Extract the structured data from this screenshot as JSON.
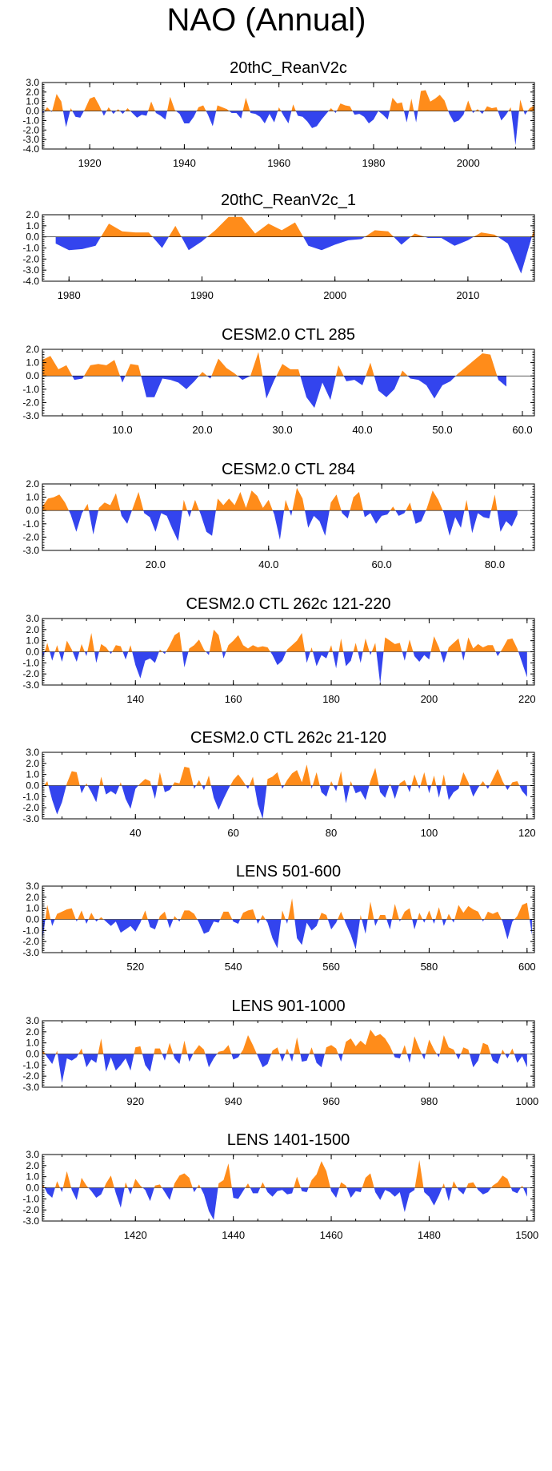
{
  "figure_title": "NAO (Annual)",
  "colors": {
    "positive": "#ff8c1a",
    "negative": "#3344ee",
    "axis": "#000000"
  },
  "chart_data": [
    {
      "type": "area",
      "title": "20thC_ReanV2c",
      "xlim": [
        1910,
        2014
      ],
      "ylim": [
        -4,
        3
      ],
      "yticks": [
        3.0,
        2.0,
        1.0,
        0.0,
        -1.0,
        -2.0,
        -3.0,
        -4.0
      ],
      "xticks": [
        1920,
        1940,
        1960,
        1980,
        2000
      ],
      "xtick_labels": [
        "1920",
        "1940",
        "1960",
        "1980",
        "2000"
      ],
      "x_start": 1910,
      "x_step": 1,
      "values": [
        -0.3,
        0.4,
        -0.1,
        1.8,
        1.0,
        -1.7,
        0.3,
        -0.6,
        -0.7,
        0.2,
        1.3,
        1.5,
        0.6,
        -0.5,
        0.4,
        -0.3,
        0.2,
        -0.3,
        0.3,
        -0.2,
        -0.7,
        -0.4,
        -0.5,
        1.0,
        -0.2,
        -0.5,
        -0.9,
        1.5,
        0.1,
        -0.3,
        -1.3,
        -1.3,
        -0.6,
        0.4,
        0.6,
        -0.4,
        -1.6,
        0.6,
        0.4,
        0.2,
        -0.2,
        -0.2,
        -0.8,
        1.4,
        -0.2,
        -0.3,
        -0.6,
        -1.3,
        -0.3,
        -1.2,
        0.4,
        -0.5,
        -1.3,
        0.7,
        -0.5,
        -0.6,
        -1.1,
        -1.8,
        -1.6,
        -0.9,
        -0.3,
        0.3,
        -0.2,
        0.8,
        0.6,
        0.5,
        -0.4,
        -0.3,
        -0.6,
        -1.3,
        -0.9,
        0.0,
        -0.4,
        -0.9,
        1.4,
        0.8,
        0.9,
        -1.2,
        1.3,
        -1.2,
        2.1,
        2.2,
        1.0,
        1.3,
        1.7,
        1.1,
        -0.3,
        -1.2,
        -1.0,
        -0.4,
        1.1,
        -0.2,
        0.2,
        -0.3,
        0.5,
        0.3,
        0.4,
        -1.0,
        -0.4,
        0.4,
        -3.6,
        1.2,
        -0.4,
        0.3,
        0.6
      ]
    },
    {
      "type": "area",
      "title": "20thC_ReanV2c_1",
      "xlim": [
        1978,
        2015
      ],
      "ylim": [
        -4,
        2
      ],
      "yticks": [
        2.0,
        1.0,
        0.0,
        -1.0,
        -2.0,
        -3.0,
        -4.0
      ],
      "xticks": [
        1980,
        1990,
        2000,
        2010
      ],
      "xtick_labels": [
        "1980",
        "1990",
        "2000",
        "2010"
      ],
      "x_start": 1979,
      "x_step": 1,
      "values": [
        -0.6,
        -1.2,
        -1.1,
        -0.8,
        1.2,
        0.5,
        0.4,
        0.4,
        -1.0,
        1.0,
        -1.2,
        -0.4,
        0.6,
        1.8,
        1.8,
        0.3,
        1.2,
        0.6,
        1.3,
        -0.8,
        -1.2,
        -0.7,
        -0.3,
        -0.2,
        0.6,
        0.5,
        -0.7,
        0.3,
        -0.1,
        -0.1,
        -0.8,
        -0.3,
        0.4,
        0.2,
        -0.6,
        -3.3,
        0.8,
        -0.7,
        -0.3,
        0.5
      ]
    },
    {
      "type": "area",
      "title": "CESM2.0 CTL 285",
      "xlim": [
        0,
        61.5
      ],
      "ylim": [
        -3,
        2
      ],
      "yticks": [
        2.0,
        1.0,
        0.0,
        -1.0,
        -2.0,
        -3.0
      ],
      "xticks": [
        10,
        20,
        30,
        40,
        50,
        60
      ],
      "xtick_labels": [
        "10.0",
        "20.0",
        "30.0",
        "40.0",
        "50.0",
        "60.0"
      ],
      "x_start": 0,
      "x_step": 1,
      "values": [
        1.2,
        1.5,
        0.5,
        0.8,
        -0.3,
        -0.2,
        0.8,
        0.9,
        0.8,
        1.2,
        -0.5,
        0.9,
        0.8,
        -1.6,
        -1.6,
        -0.2,
        -0.3,
        -0.5,
        -1.0,
        -0.4,
        0.3,
        -0.2,
        1.3,
        0.6,
        0.2,
        -0.3,
        0.0,
        1.8,
        -1.7,
        -0.3,
        0.9,
        0.5,
        0.5,
        -1.6,
        -2.4,
        -0.5,
        -1.8,
        0.8,
        -0.4,
        -0.3,
        -0.7,
        1.0,
        -1.1,
        -1.6,
        -1.0,
        0.4,
        -0.2,
        -0.3,
        -0.7,
        -1.7,
        -0.7,
        -0.4,
        0.2,
        0.7,
        1.2,
        1.7,
        1.6,
        -0.3,
        -0.8
      ]
    },
    {
      "type": "area",
      "title": "CESM2.0 CTL 284",
      "xlim": [
        0,
        87
      ],
      "ylim": [
        -3,
        2
      ],
      "yticks": [
        2.0,
        1.0,
        0.0,
        -1.0,
        -2.0,
        -3.0
      ],
      "xticks": [
        20,
        40,
        60,
        80
      ],
      "xtick_labels": [
        "20.0",
        "40.0",
        "60.0",
        "80.0"
      ],
      "x_start": 0,
      "x_step": 1,
      "values": [
        0.3,
        0.9,
        1.0,
        1.2,
        0.6,
        -0.3,
        -1.6,
        -0.2,
        0.5,
        -1.8,
        0.2,
        0.6,
        0.4,
        1.3,
        -0.4,
        -1.0,
        0.2,
        1.4,
        -0.2,
        -0.5,
        -1.6,
        -0.2,
        -0.4,
        -1.4,
        -2.3,
        0.8,
        -0.5,
        0.8,
        -0.3,
        -1.6,
        -1.9,
        0.9,
        0.4,
        0.9,
        0.4,
        1.4,
        0.2,
        1.5,
        1.1,
        0.2,
        0.8,
        -0.3,
        -2.2,
        0.8,
        -0.4,
        1.7,
        0.9,
        -1.3,
        -0.4,
        -0.8,
        -1.9,
        0.6,
        1.2,
        -0.2,
        -0.6,
        1.0,
        1.4,
        -0.5,
        -0.2,
        -1.0,
        -0.4,
        -0.3,
        0.3,
        -0.4,
        -0.2,
        0.6,
        -1.0,
        -0.8,
        0.2,
        1.5,
        0.8,
        -0.2,
        -1.9,
        -0.5,
        -1.3,
        0.8,
        -1.7,
        -0.2,
        -0.5,
        -0.6,
        1.2,
        -1.6,
        -0.8,
        -1.2,
        -0.3
      ]
    },
    {
      "type": "area",
      "title": "CESM2.0 CTL 262c 121-220",
      "xlim": [
        121,
        221.5
      ],
      "ylim": [
        -3,
        3
      ],
      "yticks": [
        3.0,
        2.0,
        1.0,
        0.0,
        -1.0,
        -2.0,
        -3.0
      ],
      "xticks": [
        140,
        160,
        180,
        200,
        220
      ],
      "xtick_labels": [
        "140",
        "160",
        "180",
        "200",
        "220"
      ],
      "x_start": 121,
      "x_step": 1,
      "values": [
        -0.7,
        0.8,
        -0.8,
        0.6,
        -0.9,
        1.0,
        0.2,
        -0.9,
        0.7,
        -0.4,
        1.7,
        -1.0,
        0.7,
        0.4,
        -0.2,
        0.6,
        0.5,
        -0.7,
        0.6,
        -1.2,
        -2.4,
        -0.8,
        -0.6,
        -1.0,
        0.2,
        -0.2,
        0.6,
        1.5,
        1.8,
        -1.4,
        0.3,
        0.6,
        1.1,
        0.2,
        -0.3,
        2.0,
        1.5,
        -0.6,
        0.6,
        1.0,
        1.5,
        0.6,
        0.3,
        0.6,
        0.4,
        0.5,
        0.4,
        -0.3,
        -1.2,
        -0.8,
        0.2,
        0.6,
        1.0,
        1.7,
        -1.0,
        0.4,
        -1.3,
        -0.3,
        -0.6,
        0.6,
        -1.5,
        1.2,
        -1.3,
        -0.8,
        0.8,
        -1.0,
        1.2,
        -0.3,
        0.8,
        -2.9,
        1.3,
        1.0,
        0.7,
        0.8,
        -0.8,
        1.1,
        -0.4,
        -0.9,
        -0.3,
        -0.7,
        1.4,
        0.4,
        -1.0,
        0.4,
        0.8,
        1.2,
        -0.8,
        1.3,
        0.3,
        0.7,
        0.4,
        0.6,
        0.6,
        -0.4,
        0.3,
        1.1,
        1.2,
        0.3,
        -1.0,
        -2.3
      ]
    },
    {
      "type": "area",
      "title": "CESM2.0 CTL 262c 21-120",
      "xlim": [
        21,
        121.5
      ],
      "ylim": [
        -3,
        3
      ],
      "yticks": [
        3.0,
        2.0,
        1.0,
        0.0,
        -1.0,
        -2.0,
        -3.0
      ],
      "xticks": [
        40,
        60,
        80,
        100,
        120
      ],
      "xtick_labels": [
        "40",
        "60",
        "80",
        "100",
        "120"
      ],
      "x_start": 21,
      "x_step": 1,
      "values": [
        -0.2,
        0.4,
        -1.3,
        -2.6,
        -1.5,
        0.2,
        1.3,
        1.2,
        -0.7,
        0.2,
        -0.6,
        -1.5,
        0.8,
        -0.8,
        -0.5,
        -0.8,
        0.3,
        -1.2,
        -2.1,
        -0.3,
        0.2,
        0.6,
        0.4,
        -1.2,
        1.2,
        -0.6,
        -0.4,
        0.3,
        0.2,
        1.7,
        1.6,
        -0.3,
        0.5,
        -0.4,
        0.9,
        -1.1,
        -2.2,
        -1.2,
        -0.3,
        0.5,
        1.0,
        0.4,
        -0.3,
        0.8,
        -1.7,
        -3.0,
        0.6,
        0.8,
        1.2,
        -0.3,
        0.5,
        1.1,
        1.4,
        0.3,
        1.9,
        -0.3,
        1.2,
        -0.6,
        -1.0,
        0.4,
        -0.5,
        1.3,
        -1.6,
        0.4,
        -0.7,
        -0.5,
        -1.3,
        0.4,
        1.6,
        -0.6,
        -1.1,
        0.2,
        -1.2,
        0.2,
        0.5,
        -0.6,
        1.0,
        -0.3,
        1.2,
        -0.7,
        0.9,
        -1.1,
        1.0,
        -1.3,
        -0.6,
        -0.3,
        1.2,
        0.3,
        -1.0,
        -0.2,
        0.4,
        -0.3,
        0.6,
        1.5,
        0.4,
        -0.4,
        0.3,
        0.4,
        -0.5,
        -1.0
      ]
    },
    {
      "type": "area",
      "title": "LENS 501-600",
      "xlim": [
        501,
        601.5
      ],
      "ylim": [
        -3,
        3
      ],
      "yticks": [
        3.0,
        2.0,
        1.0,
        0.0,
        -1.0,
        -2.0,
        -3.0
      ],
      "xticks": [
        520,
        540,
        560,
        580,
        600
      ],
      "xtick_labels": [
        "520",
        "540",
        "560",
        "580",
        "600"
      ],
      "x_start": 501,
      "x_step": 1,
      "values": [
        -1.9,
        1.3,
        -0.6,
        0.5,
        0.7,
        0.9,
        1.0,
        -0.2,
        0.8,
        -0.4,
        0.6,
        -0.2,
        0.2,
        -0.2,
        -0.6,
        -0.2,
        -1.2,
        -0.9,
        -0.6,
        -1.1,
        -0.3,
        0.8,
        -0.7,
        -0.9,
        0.3,
        0.7,
        -0.8,
        0.3,
        -0.2,
        0.8,
        0.8,
        0.5,
        -0.3,
        -1.3,
        -1.1,
        -0.2,
        -0.3,
        0.7,
        0.7,
        -0.2,
        -0.4,
        0.6,
        0.8,
        0.9,
        -0.4,
        0.4,
        -0.3,
        -1.7,
        -2.6,
        0.8,
        -0.4,
        1.9,
        -1.7,
        -2.3,
        -0.3,
        -1.0,
        -0.6,
        0.6,
        0.4,
        -0.9,
        -0.3,
        0.7,
        -0.4,
        -1.4,
        -2.7,
        0.4,
        -1.3,
        1.6,
        -0.6,
        0.4,
        0.4,
        -0.9,
        1.4,
        -0.2,
        0.7,
        1.0,
        -0.9,
        0.6,
        -0.3,
        0.8,
        -0.4,
        1.1,
        -0.6,
        0.5,
        -0.3,
        1.3,
        0.6,
        1.2,
        0.9,
        0.7,
        -0.2,
        0.7,
        0.5,
        0.7,
        -0.2,
        -1.8,
        -0.2,
        0.3,
        1.3,
        1.5,
        -1.4
      ]
    },
    {
      "type": "area",
      "title": "LENS 901-1000",
      "xlim": [
        901,
        1001.5
      ],
      "ylim": [
        -3,
        3
      ],
      "yticks": [
        3.0,
        2.0,
        1.0,
        0.0,
        -1.0,
        -2.0,
        -3.0
      ],
      "xticks": [
        920,
        940,
        960,
        980,
        1000
      ],
      "xtick_labels": [
        "920",
        "940",
        "960",
        "980",
        "1000"
      ],
      "x_start": 901,
      "x_step": 1,
      "values": [
        0.4,
        -0.3,
        -0.9,
        0.3,
        -2.6,
        -0.4,
        -0.6,
        -0.3,
        0.5,
        -1.2,
        -0.5,
        -0.8,
        1.4,
        -1.6,
        -0.3,
        -1.5,
        -1.0,
        -0.4,
        -1.5,
        0.6,
        0.7,
        -1.0,
        -1.6,
        0.5,
        0.5,
        -0.6,
        1.0,
        -0.4,
        -0.9,
        1.2,
        -0.7,
        0.2,
        0.8,
        0.4,
        -1.2,
        -0.4,
        0.2,
        0.3,
        0.8,
        -0.5,
        -0.3,
        0.4,
        1.7,
        0.8,
        -0.2,
        -1.2,
        -0.9,
        0.3,
        0.6,
        -0.7,
        0.5,
        -0.7,
        1.5,
        -0.7,
        -0.6,
        0.6,
        -0.8,
        -1.2,
        0.6,
        0.8,
        0.5,
        -0.7,
        1.1,
        1.4,
        0.7,
        1.2,
        0.8,
        2.2,
        1.6,
        1.8,
        1.4,
        0.7,
        -0.3,
        -0.4,
        0.8,
        -0.8,
        1.6,
        0.5,
        -0.5,
        1.3,
        0.4,
        -0.3,
        1.7,
        0.6,
        0.4,
        -0.5,
        0.6,
        0.4,
        -1.2,
        -0.6,
        1.0,
        0.8,
        -0.6,
        -0.9,
        0.4,
        -0.4,
        0.5,
        -0.8,
        -0.2,
        -1.2
      ]
    },
    {
      "type": "area",
      "title": "LENS 1401-1500",
      "xlim": [
        1401,
        1501.5
      ],
      "ylim": [
        -3,
        3
      ],
      "yticks": [
        3.0,
        2.0,
        1.0,
        0.0,
        -1.0,
        -2.0,
        -3.0
      ],
      "xticks": [
        1420,
        1440,
        1460,
        1480,
        1500
      ],
      "xtick_labels": [
        "1420",
        "1440",
        "1460",
        "1480",
        "1500"
      ],
      "x_start": 1401,
      "x_step": 1,
      "values": [
        0.4,
        -0.5,
        -0.9,
        0.6,
        -0.4,
        1.5,
        -0.2,
        -1.1,
        0.9,
        0.2,
        -0.3,
        -0.9,
        -0.6,
        0.4,
        1.1,
        -0.5,
        -1.8,
        0.5,
        -0.6,
        0.8,
        0.2,
        -0.2,
        -1.2,
        0.2,
        0.3,
        -0.4,
        -1.1,
        0.4,
        1.1,
        1.3,
        0.9,
        -0.4,
        0.3,
        -0.6,
        -2.1,
        -2.9,
        0.4,
        0.7,
        2.2,
        -0.9,
        -1.0,
        -0.3,
        0.4,
        -0.5,
        -0.5,
        0.5,
        -0.4,
        -0.8,
        -0.3,
        -0.2,
        -0.6,
        -0.5,
        1.0,
        -0.3,
        -0.4,
        0.7,
        1.2,
        2.4,
        1.5,
        -0.3,
        -0.9,
        0.5,
        0.2,
        -0.9,
        -0.3,
        -0.4,
        0.9,
        1.3,
        -0.4,
        -1.1,
        -0.2,
        -0.4,
        -0.8,
        -0.4,
        -2.2,
        -0.5,
        -0.2,
        2.5,
        -0.4,
        -0.8,
        -1.6,
        -0.7,
        0.4,
        -1.2,
        0.6,
        -0.2,
        -0.6,
        0.4,
        0.5,
        -0.2,
        -0.6,
        -0.4,
        0.2,
        0.5,
        1.1,
        0.8,
        -0.3,
        -0.5,
        0.2,
        -0.8
      ]
    }
  ]
}
